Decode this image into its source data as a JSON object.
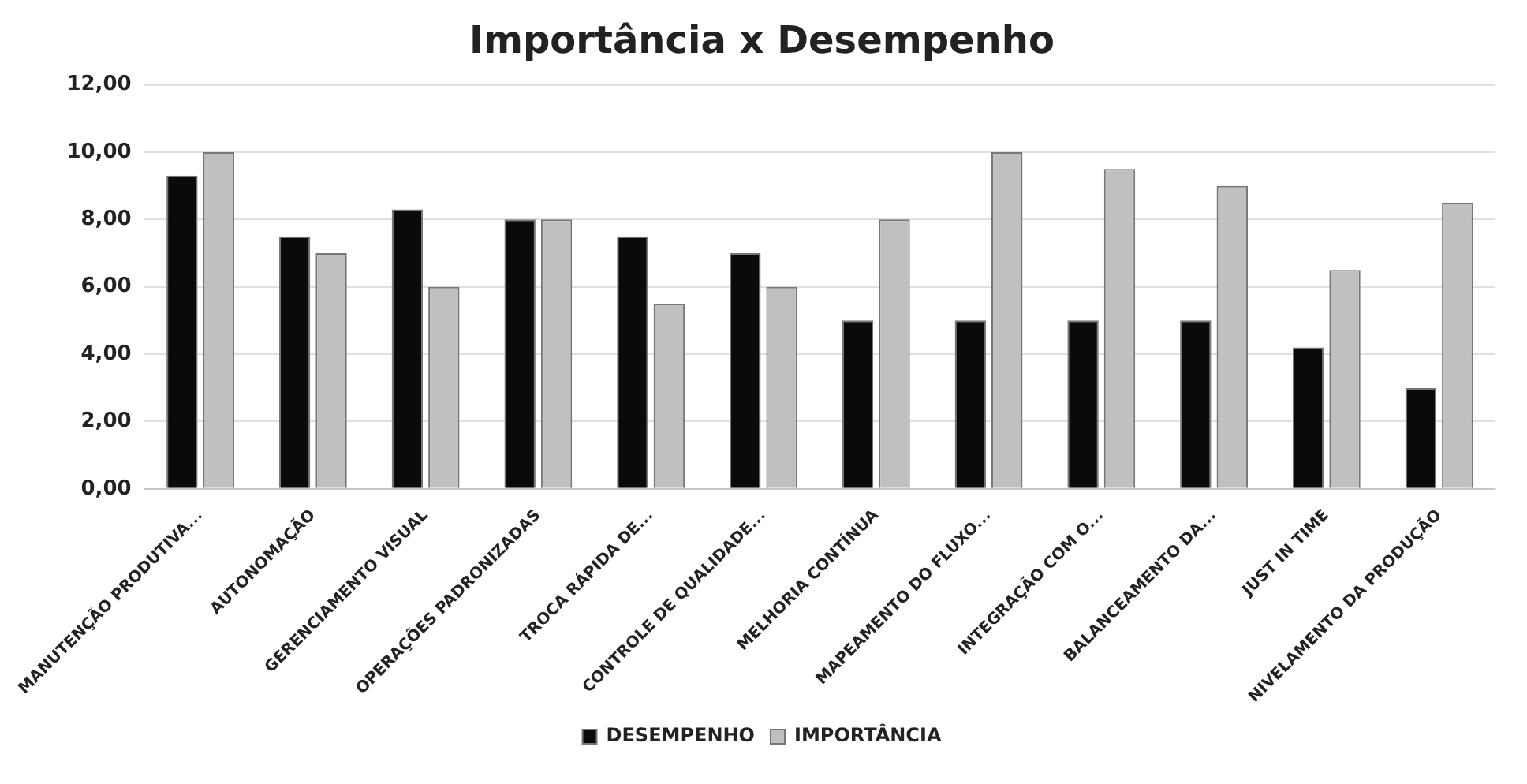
{
  "chart_data": {
    "type": "bar",
    "title": "Importância x Desempenho",
    "categories": [
      "MANUTENÇÃO PRODUTIVA...",
      "AUTONOMAÇÃO",
      "GERENCIAMENTO VISUAL",
      "OPERAÇÕES PADRONIZADAS",
      "TROCA RÁPIDA DE...",
      "CONTROLE DE QUALIDADE...",
      "MELHORIA CONTÍNUA",
      "MAPEAMENTO DO FLUXO...",
      "INTEGRAÇÃO COM O...",
      "BALANCEAMENTO DA...",
      "JUST IN TIME",
      "NIVELAMENTO DA PRODUÇÃO"
    ],
    "series": [
      {
        "name": "DESEMPENHO",
        "color": "#0a0a0a",
        "values": [
          9.3,
          7.5,
          8.3,
          8,
          7.5,
          7,
          5,
          5,
          5,
          5,
          4.2,
          3
        ]
      },
      {
        "name": "IMPORTÂNCIA",
        "color": "#c0c0c0",
        "values": [
          10,
          7,
          6,
          8,
          5.5,
          6,
          8,
          10,
          9.5,
          9,
          6.5,
          8.5
        ]
      }
    ],
    "ylim": [
      0,
      12
    ],
    "yticks": [
      {
        "value": 0,
        "label": "0,00"
      },
      {
        "value": 2,
        "label": "2,00"
      },
      {
        "value": 4,
        "label": "4,00"
      },
      {
        "value": 6,
        "label": "6,00"
      },
      {
        "value": 8,
        "label": "8,00"
      },
      {
        "value": 10,
        "label": "10,00"
      },
      {
        "value": 12,
        "label": "12,00"
      }
    ],
    "grid": "y",
    "legend": "bottom"
  }
}
